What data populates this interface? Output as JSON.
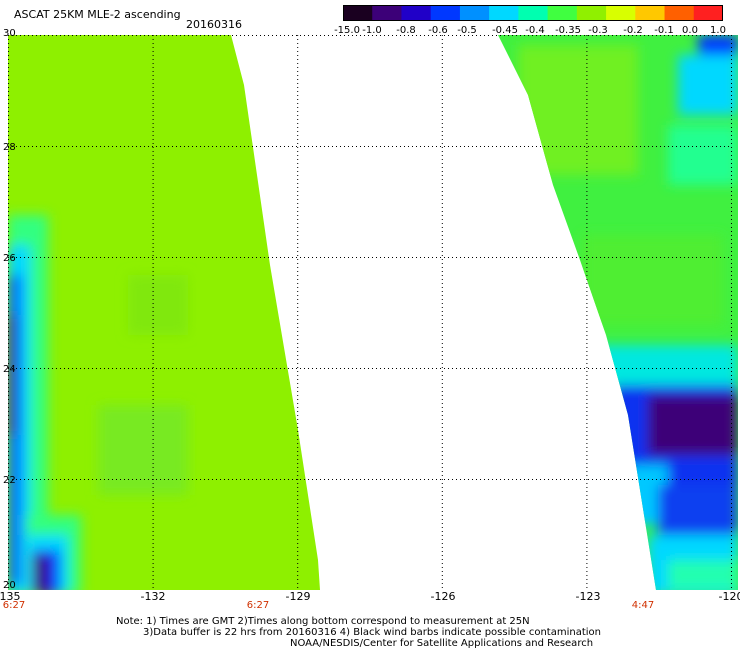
{
  "header": {
    "title": "ASCAT 25KM MLE-2 ascending",
    "date": "20160316"
  },
  "colorbar": {
    "labels": [
      "-15.0",
      "-1.0",
      "-0.8",
      "-0.6",
      "-0.5",
      "-0.45",
      "-0.4",
      "-0.35",
      "-0.3",
      "-0.2",
      "-0.1",
      "0.0",
      "1.0"
    ],
    "colors": [
      "#1a0020",
      "#3c0078",
      "#2000c8",
      "#0038ff",
      "#0090ff",
      "#00d8ff",
      "#00ffb0",
      "#40ff40",
      "#90f000",
      "#d8ff00",
      "#ffc800",
      "#ff6000",
      "#ff2020"
    ]
  },
  "map": {
    "lon_labels": [
      "-135",
      "-132",
      "-129",
      "-126",
      "-123",
      "-120"
    ],
    "lat_labels": [
      "30",
      "28",
      "26",
      "24",
      "22",
      "20"
    ],
    "time_labels": [
      "6:27",
      "6:27",
      "4:47"
    ],
    "lon_range": [
      -135,
      -120
    ],
    "lat_range": [
      20,
      30
    ]
  },
  "notes": {
    "line1": "Note: 1) Times are GMT 2)Times along bottom correspond to measurement at 25N",
    "line2": "3)Data buffer is 22 hrs from 20160316 4) Black wind barbs indicate possible contamination",
    "line3": "NOAA/NESDIS/Center for Satellite Applications and Research"
  }
}
